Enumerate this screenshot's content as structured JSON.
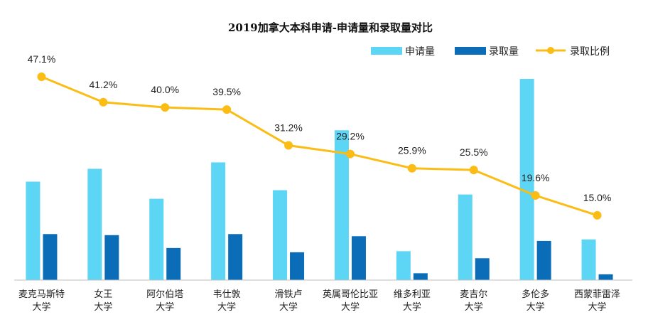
{
  "chart_data": {
    "type": "bar",
    "title": "2019加拿大本科申请-申请量和录取量对比",
    "categories": [
      [
        "麦克马斯特",
        "大学"
      ],
      [
        "女王",
        "大学"
      ],
      [
        "阿尔伯塔",
        "大学"
      ],
      [
        "韦仕敦",
        "大学"
      ],
      [
        "滑铁卢",
        "大学"
      ],
      [
        "英属哥伦比亚",
        "大学"
      ],
      [
        "维多利亚",
        "大学"
      ],
      [
        "麦吉尔",
        "大学"
      ],
      [
        "多伦多",
        "大学"
      ],
      [
        "西蒙菲雷泽",
        "大学"
      ]
    ],
    "series": [
      {
        "name": "申请量",
        "type": "bar",
        "color": "#5dd5f4",
        "values": [
          46000,
          52000,
          38000,
          55000,
          42000,
          70000,
          13500,
          40000,
          94000,
          19000
        ]
      },
      {
        "name": "录取量",
        "type": "bar",
        "color": "#0b6cb7",
        "values": [
          21500,
          21000,
          15000,
          21500,
          13000,
          20500,
          3200,
          10200,
          18300,
          2700
        ]
      },
      {
        "name": "录取比例",
        "type": "line",
        "color": "#fbbd15",
        "values": [
          47.1,
          41.2,
          40.0,
          39.5,
          31.2,
          29.2,
          25.9,
          25.5,
          19.6,
          15.0
        ],
        "labels": [
          "47.1%",
          "41.2%",
          "40.0%",
          "39.5%",
          "31.2%",
          "29.2%",
          "25.9%",
          "25.5%",
          "19.6%",
          "15.0%"
        ]
      }
    ],
    "y_bar_range": [
      0,
      95000
    ],
    "y_line_range": [
      0,
      55
    ],
    "legend_position": "top-right",
    "grid": false
  }
}
